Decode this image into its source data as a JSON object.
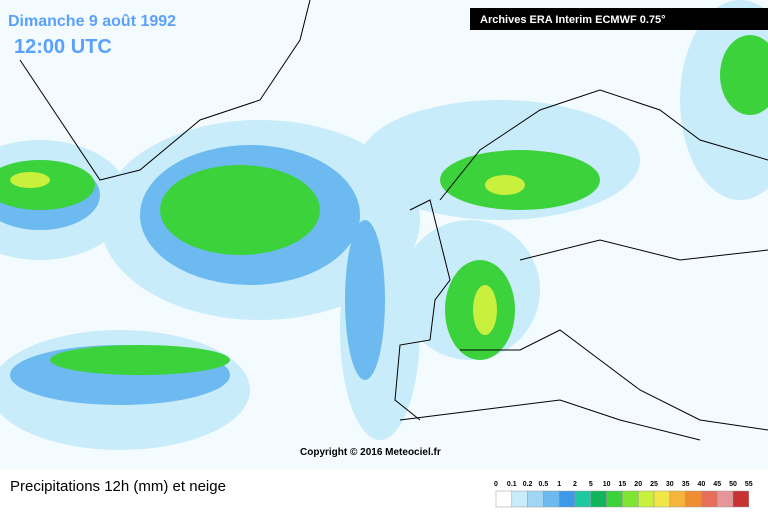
{
  "header": {
    "date": "Dimanche 9 août 1992",
    "time": "12:00 UTC",
    "source": "Archives ERA Interim ECMWF 0.75°"
  },
  "map": {
    "copyright": "Copyright © 2016 Meteociel.fr"
  },
  "footer": {
    "title": "Precipitations 12h (mm) et neige"
  },
  "legend": {
    "labels": [
      0,
      0.1,
      0.2,
      0.5,
      1,
      2,
      5,
      10,
      15,
      20,
      25,
      30,
      35,
      40,
      45,
      50,
      55
    ],
    "colors": [
      "#ffffff",
      "#c8ecfa",
      "#a0d6f5",
      "#6cbaf0",
      "#3c9ae6",
      "#20c8a0",
      "#10b45a",
      "#3cd23c",
      "#7ee632",
      "#c8f03c",
      "#f0e646",
      "#f5b43c",
      "#f08c32",
      "#e66e5a",
      "#e6969b",
      "#c83232"
    ]
  }
}
